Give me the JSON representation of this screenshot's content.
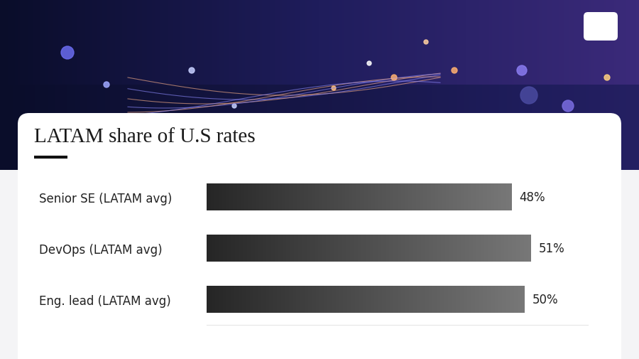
{
  "chart_data": {
    "type": "bar",
    "orientation": "horizontal",
    "title": "LATAM share of U.S rates",
    "categories": [
      "Senior SE (LATAM avg)",
      "DevOps (LATAM avg)",
      "Eng. lead (LATAM avg)"
    ],
    "values": [
      48,
      51,
      50
    ],
    "value_labels": [
      "48%",
      "51%",
      "50%"
    ],
    "data_labels": true,
    "color": "#262626",
    "xlim": [
      0,
      60
    ],
    "tick_labels": "y",
    "grid": false
  }
}
